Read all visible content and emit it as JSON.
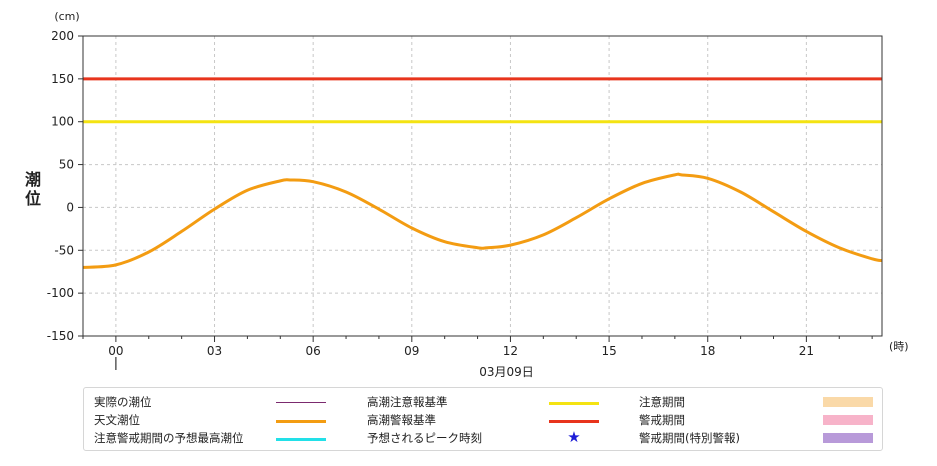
{
  "chart_data": {
    "type": "line",
    "y_unit": "(cm)",
    "x_unit": "(時)",
    "ylabel": "潮位",
    "xlabel": "03月09日",
    "ylim": [
      -150,
      200
    ],
    "yticks": [
      200,
      150,
      100,
      50,
      0,
      -50,
      -100,
      -150
    ],
    "xlim": [
      -1,
      23.3
    ],
    "xticks": [
      0,
      3,
      6,
      9,
      12,
      15,
      18,
      21
    ],
    "xtick_labels": [
      "00",
      "03",
      "06",
      "09",
      "12",
      "15",
      "18",
      "21"
    ],
    "grid": true,
    "series": [
      {
        "name": "天文潮位",
        "color": "#f39c12",
        "x": [
          -1,
          0,
          1,
          2,
          3,
          4,
          5,
          5.3,
          6,
          7,
          8,
          9,
          10,
          11,
          11.3,
          12,
          13,
          14,
          15,
          16,
          17,
          17.2,
          18,
          19,
          20,
          21,
          22,
          23,
          23.3
        ],
        "y": [
          -70,
          -67,
          -52,
          -28,
          -2,
          20,
          31,
          32,
          30,
          18,
          -2,
          -24,
          -40,
          -47,
          -47,
          -44,
          -32,
          -12,
          10,
          28,
          38,
          38,
          34,
          18,
          -5,
          -28,
          -47,
          -60,
          -62
        ]
      },
      {
        "name": "高潮注意報基準",
        "color": "#f4e312",
        "x": [
          -1,
          23.3
        ],
        "y": [
          100,
          100
        ]
      },
      {
        "name": "高潮警報基準",
        "color": "#e8341c",
        "x": [
          -1,
          23.3
        ],
        "y": [
          150,
          150
        ]
      }
    ]
  },
  "legend": {
    "items": [
      {
        "label": "実際の潮位",
        "symbol": "line",
        "color": "#7b2a6e"
      },
      {
        "label": "天文潮位",
        "symbol": "line",
        "color": "#f39c12"
      },
      {
        "label": "注意警戒期間の予想最高潮位",
        "symbol": "line",
        "color": "#22e0e8"
      },
      {
        "label": "高潮注意報基準",
        "symbol": "line",
        "color": "#f4e312"
      },
      {
        "label": "高潮警報基準",
        "symbol": "line",
        "color": "#e8341c"
      },
      {
        "label": "予想されるピーク時刻",
        "symbol": "star",
        "color": "#1d1dd6",
        "glyph": "★"
      },
      {
        "label": "注意期間",
        "symbol": "box",
        "color": "#fad9a8"
      },
      {
        "label": "警戒期間",
        "symbol": "box",
        "color": "#f7b3c9"
      },
      {
        "label": "警戒期間(特別警報)",
        "symbol": "box",
        "color": "#b89ad9"
      }
    ]
  }
}
